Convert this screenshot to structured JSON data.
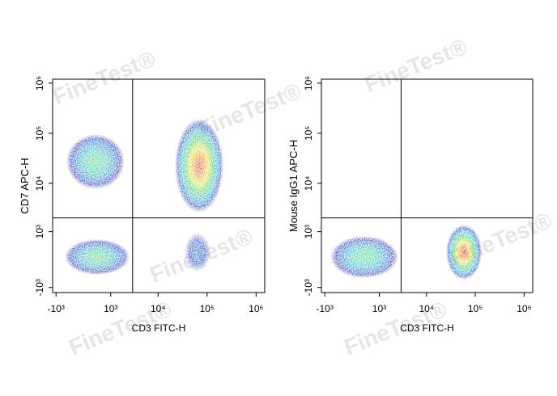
{
  "watermark": "FineTest®",
  "chart_data": [
    {
      "type": "flow-density",
      "x_label": "CD3 FITC-H",
      "y_label": "CD7 APC-H",
      "xlim": [
        -1200,
        1500000
      ],
      "ylim": [
        -1300,
        1200000
      ],
      "xticks": [
        {
          "value": -1000,
          "label": "-10³"
        },
        {
          "value": 1000,
          "label": "10³"
        },
        {
          "value": 10000,
          "label": "10⁴"
        },
        {
          "value": 100000,
          "label": "10⁵"
        },
        {
          "value": 1000000,
          "label": "10⁶"
        }
      ],
      "yticks": [
        {
          "value": -1000,
          "label": "-10³"
        },
        {
          "value": 1000,
          "label": "10³"
        },
        {
          "value": 10000,
          "label": "10⁴"
        },
        {
          "value": 100000,
          "label": "10⁵"
        },
        {
          "value": 1000000,
          "label": "10⁶"
        }
      ],
      "gates": {
        "x": 3000,
        "y": 2000
      }
    },
    {
      "type": "flow-density",
      "x_label": "CD3 FITC-H",
      "y_label": "Mouse IgG1 APC-H",
      "xlim": [
        -1200,
        1500000
      ],
      "ylim": [
        -1300,
        1200000
      ],
      "xticks": [
        {
          "value": -1000,
          "label": "-10³"
        },
        {
          "value": 1000,
          "label": "10³"
        },
        {
          "value": 10000,
          "label": "10⁴"
        },
        {
          "value": 100000,
          "label": "10⁵"
        },
        {
          "value": 1000000,
          "label": "10⁶"
        }
      ],
      "yticks": [
        {
          "value": -1000,
          "label": "-10³"
        },
        {
          "value": 1000,
          "label": "10³"
        },
        {
          "value": 10000,
          "label": "10⁴"
        },
        {
          "value": 100000,
          "label": "10⁵"
        },
        {
          "value": 1000000,
          "label": "10⁶"
        }
      ],
      "gates": {
        "x": 3000,
        "y": 2000
      }
    }
  ]
}
